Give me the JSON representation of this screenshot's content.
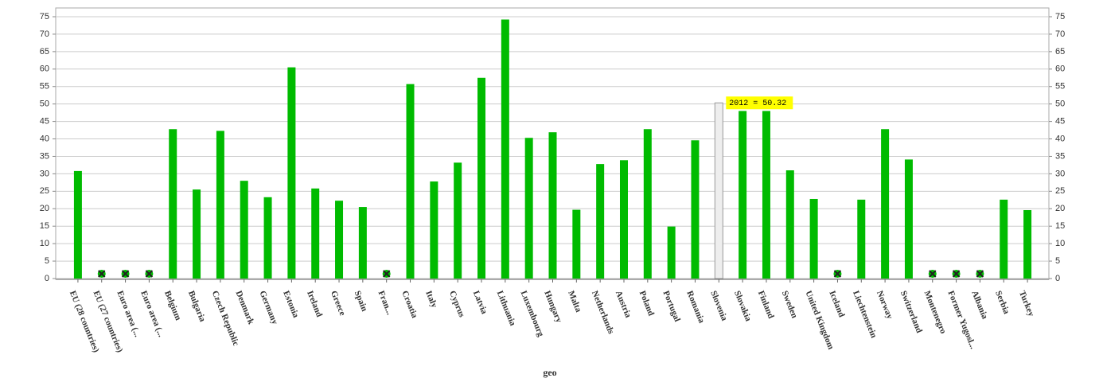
{
  "chart_data": {
    "type": "bar",
    "x_label": "geo",
    "categories": [
      "EU (28 countries)",
      "EU (27 countries)",
      "Euro area (...",
      "Euro area (...",
      "Belgium",
      "Bulgaria",
      "Czech Republic",
      "Denmark",
      "Germany",
      "Estonia",
      "Ireland",
      "Greece",
      "Spain",
      "Fran...",
      "Croatia",
      "Italy",
      "Cyprus",
      "Latvia",
      "Lithuania",
      "Luxembourg",
      "Hungary",
      "Malta",
      "Netherlands",
      "Austria",
      "Poland",
      "Portugal",
      "Romania",
      "Slovenia",
      "Slovakia",
      "Finland",
      "Sweden",
      "United Kingdom",
      "Iceland",
      "Liechtenstein",
      "Norway",
      "Switzerland",
      "Montenegro",
      "Former Yugosl...",
      "Albania",
      "Serbia",
      "Turkey"
    ],
    "values": [
      30.8,
      null,
      null,
      null,
      42.8,
      25.5,
      42.3,
      28.0,
      23.3,
      60.5,
      25.8,
      22.3,
      20.5,
      null,
      55.7,
      27.8,
      33.2,
      57.5,
      74.2,
      40.3,
      41.9,
      19.7,
      32.8,
      33.9,
      42.8,
      14.9,
      39.6,
      50.32,
      48.0,
      48.0,
      31.0,
      22.8,
      null,
      22.6,
      42.8,
      34.1,
      null,
      null,
      null,
      22.6,
      19.6
    ],
    "color": "#00bb00",
    "highlight_color": "#eeeeee",
    "tooltip": {
      "category": "Slovenia",
      "text": "2012 = 50.32"
    },
    "ylim": [
      0,
      75
    ],
    "yticks": [
      0,
      5,
      10,
      15,
      20,
      25,
      30,
      35,
      40,
      45,
      50,
      55,
      60,
      65,
      70,
      75
    ],
    "grid": true
  }
}
